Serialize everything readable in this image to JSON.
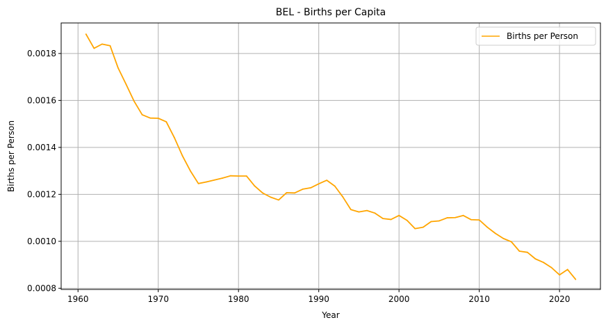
{
  "chart_data": {
    "type": "line",
    "title": "BEL - Births per Capita",
    "xlabel": "Year",
    "ylabel": "Births per Person",
    "xlim": [
      1957.9,
      2025.1
    ],
    "ylim": [
      0.000795,
      0.00193
    ],
    "xticks": [
      1960,
      1970,
      1980,
      1990,
      2000,
      2010,
      2020
    ],
    "yticks": [
      0.0008,
      0.001,
      0.0012,
      0.0014,
      0.0016,
      0.0018
    ],
    "ytick_labels": [
      "0.0008",
      "0.0010",
      "0.0012",
      "0.0014",
      "0.0016",
      "0.0018"
    ],
    "grid": true,
    "legend_position": "top-right",
    "series": [
      {
        "name": "Births per Person",
        "color": "#FFA500",
        "x": [
          1961,
          1962,
          1963,
          1964,
          1965,
          1966,
          1967,
          1968,
          1969,
          1970,
          1971,
          1972,
          1973,
          1974,
          1975,
          1976,
          1977,
          1978,
          1979,
          1980,
          1981,
          1982,
          1983,
          1984,
          1985,
          1986,
          1987,
          1988,
          1989,
          1990,
          1991,
          1992,
          1993,
          1994,
          1995,
          1996,
          1997,
          1998,
          1999,
          2000,
          2001,
          2002,
          2003,
          2004,
          2005,
          2006,
          2007,
          2008,
          2009,
          2010,
          2011,
          2012,
          2013,
          2014,
          2015,
          2016,
          2017,
          2018,
          2019,
          2020,
          2021,
          2022
        ],
        "values": [
          0.001882,
          0.001822,
          0.00184,
          0.001833,
          0.001738,
          0.001668,
          0.001596,
          0.001539,
          0.001525,
          0.001524,
          0.001509,
          0.001442,
          0.001365,
          0.0013,
          0.001246,
          0.001253,
          0.001261,
          0.001269,
          0.001279,
          0.001278,
          0.001278,
          0.001236,
          0.001206,
          0.001188,
          0.001176,
          0.001207,
          0.001206,
          0.001222,
          0.001228,
          0.001245,
          0.00126,
          0.001235,
          0.001189,
          0.001135,
          0.001125,
          0.001131,
          0.00112,
          0.001097,
          0.001093,
          0.00111,
          0.001089,
          0.001054,
          0.00106,
          0.001084,
          0.001087,
          0.0011,
          0.001101,
          0.00111,
          0.001092,
          0.001091,
          0.00106,
          0.001034,
          0.001012,
          0.000998,
          0.000958,
          0.000953,
          0.000925,
          0.00091,
          0.000888,
          0.000857,
          0.00088,
          0.000838
        ]
      }
    ]
  }
}
